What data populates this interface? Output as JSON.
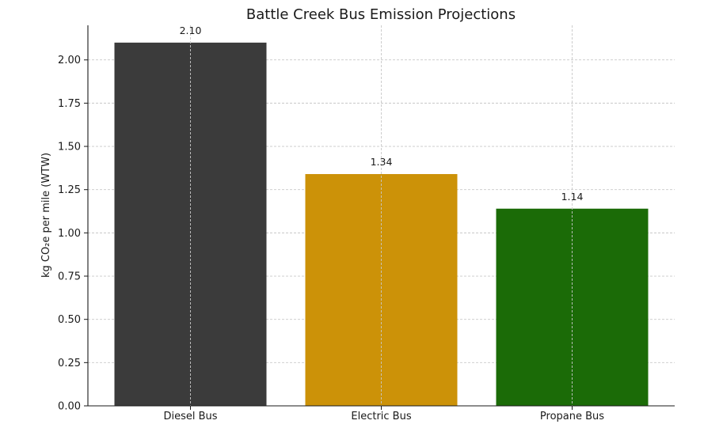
{
  "chart_data": {
    "type": "bar",
    "title": "Battle Creek Bus Emission Projections",
    "xlabel": "",
    "ylabel": "kg CO₂e per mile (WTW)",
    "categories": [
      "Diesel Bus",
      "Electric Bus",
      "Propane Bus"
    ],
    "values": [
      2.1,
      1.34,
      1.14
    ],
    "value_labels": [
      "2.10",
      "1.34",
      "1.14"
    ],
    "colors": [
      "#3b3b3b",
      "#cc9208",
      "#1b6b07"
    ],
    "ylim": [
      0,
      2.2
    ],
    "yticks": [
      0,
      0.25,
      0.5,
      0.75,
      1.0,
      1.25,
      1.5,
      1.75,
      2.0
    ],
    "ytick_labels": [
      "0.00",
      "0.25",
      "0.50",
      "0.75",
      "1.00",
      "1.25",
      "1.50",
      "1.75",
      "2.00"
    ],
    "grid": true
  }
}
